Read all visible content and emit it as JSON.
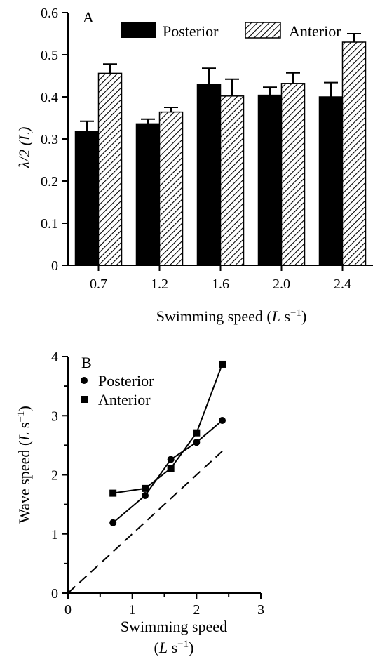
{
  "chart_data": [
    {
      "panel": "A",
      "type": "bar",
      "xlabel": "Swimming speed (",
      "xlabel_unit": "L",
      "xlabel_unit_s": " s",
      "xlabel_sup": "−1",
      "xlabel_close": ")",
      "ylabel_prefix": "λ/2 (",
      "ylabel_unit": "L",
      "ylabel_suffix": ")",
      "categories": [
        "0.7",
        "1.2",
        "1.6",
        "2.0",
        "2.4"
      ],
      "ylim": [
        0,
        0.6
      ],
      "yticks": [
        "0",
        "0.1",
        "0.2",
        "0.3",
        "0.4",
        "0.5",
        "0.6"
      ],
      "legend_position": "top",
      "series": [
        {
          "name": "Posterior",
          "fill": "solid",
          "values": [
            0.318,
            0.336,
            0.43,
            0.404,
            0.4
          ],
          "errors": [
            0.024,
            0.011,
            0.038,
            0.019,
            0.034
          ]
        },
        {
          "name": "Anterior",
          "fill": "hatched",
          "values": [
            0.456,
            0.364,
            0.402,
            0.432,
            0.53
          ],
          "errors": [
            0.022,
            0.011,
            0.04,
            0.025,
            0.02
          ]
        }
      ]
    },
    {
      "panel": "B",
      "type": "line",
      "xlabel_line1": "Swimming speed",
      "xlabel_line2_open": "(",
      "xlabel_unit": "L",
      "xlabel_unit_s": " s",
      "xlabel_sup": "−1",
      "xlabel_close": ")",
      "ylabel": "Wave speed (",
      "ylabel_unit": "L",
      "ylabel_unit_s": " s",
      "ylabel_sup": "−1",
      "ylabel_close": ")",
      "xlim": [
        0,
        3
      ],
      "ylim": [
        0,
        4
      ],
      "xticks": [
        "0",
        "1",
        "2",
        "3"
      ],
      "yticks": [
        "0",
        "1",
        "2",
        "3",
        "4"
      ],
      "legend_position": "top-left",
      "reference_line": {
        "style": "dashed",
        "x": [
          0,
          2.4
        ],
        "y": [
          0,
          2.4
        ]
      },
      "series": [
        {
          "name": "Posterior",
          "marker": "circle",
          "x": [
            0.7,
            1.2,
            1.6,
            2.0,
            2.4
          ],
          "y": [
            1.19,
            1.65,
            2.26,
            2.55,
            2.92
          ]
        },
        {
          "name": "Anterior",
          "marker": "square",
          "x": [
            0.7,
            1.2,
            1.6,
            2.0,
            2.4
          ],
          "y": [
            1.69,
            1.77,
            2.11,
            2.71,
            3.87
          ]
        }
      ]
    }
  ]
}
